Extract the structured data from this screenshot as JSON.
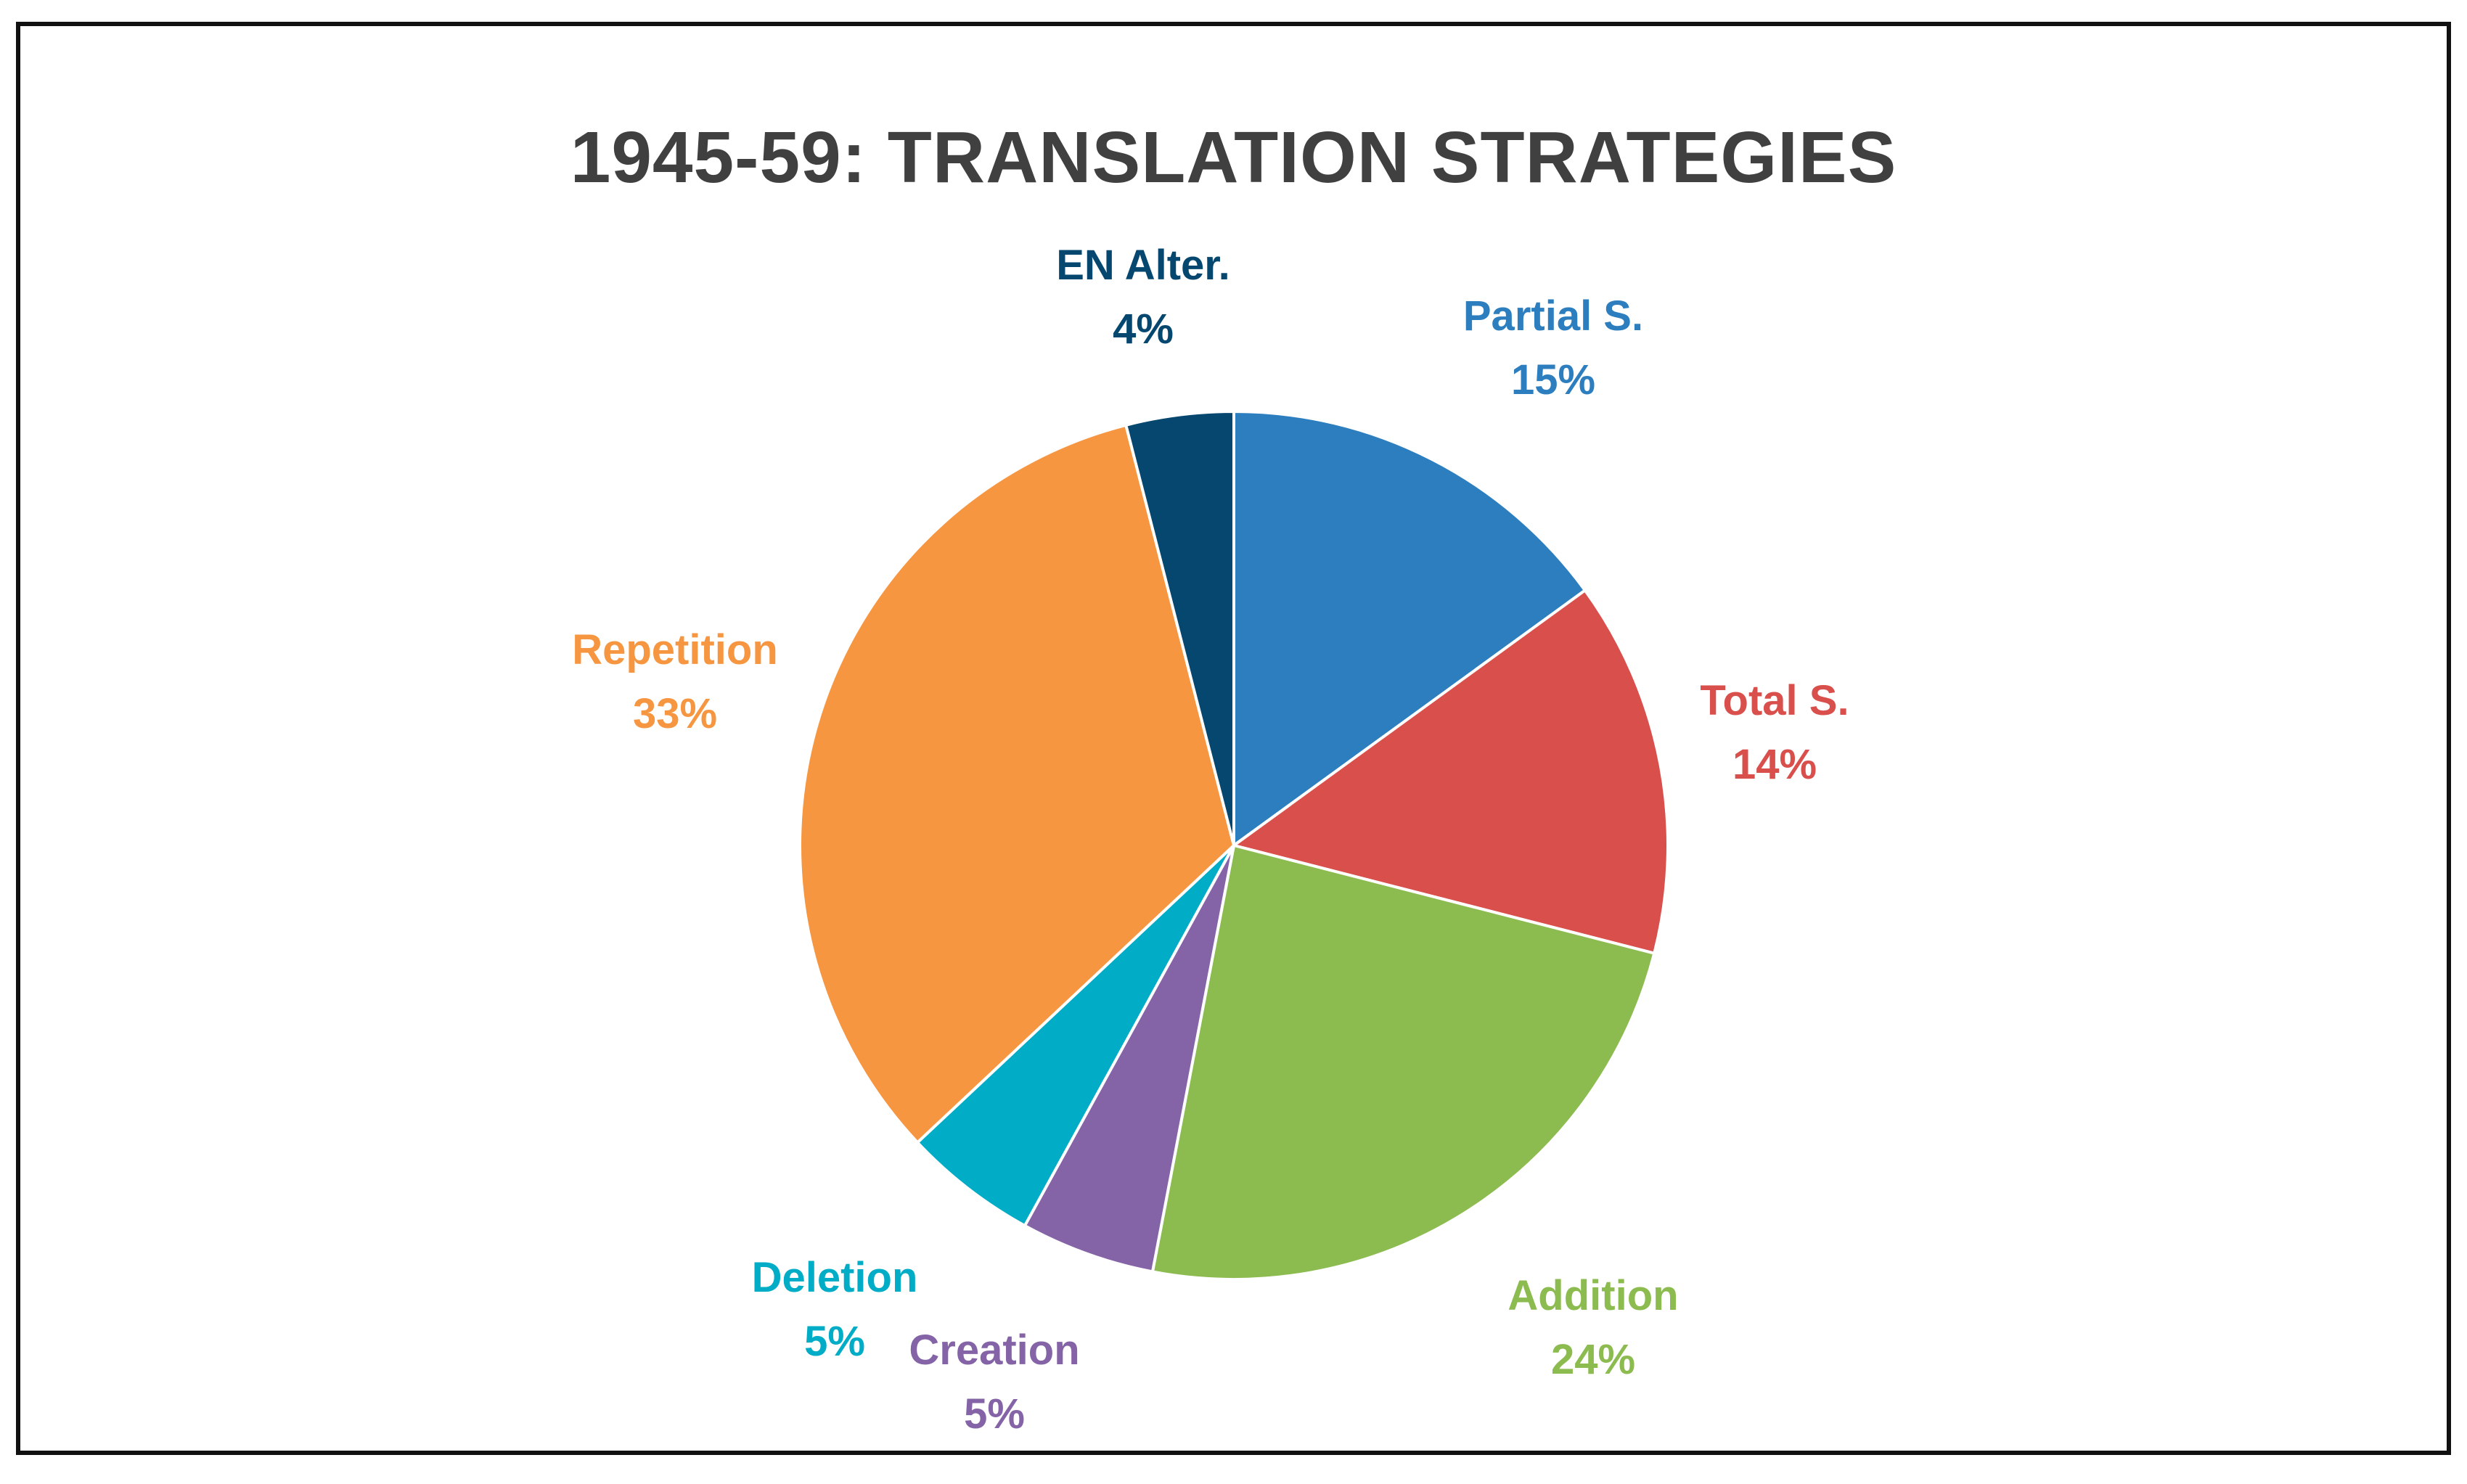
{
  "chart_data": {
    "type": "pie",
    "title": "1945-59: TRANSLATION STRATEGIES",
    "slices": [
      {
        "label": "Partial S.",
        "value": 15,
        "display": "15%",
        "color": "#2C7EBF"
      },
      {
        "label": "Total S.",
        "value": 14,
        "display": "14%",
        "color": "#D94F4B"
      },
      {
        "label": "Addition",
        "value": 24,
        "display": "24%",
        "color": "#8CBB4F"
      },
      {
        "label": "Creation",
        "value": 5,
        "display": "5%",
        "color": "#8563A7"
      },
      {
        "label": "Deletion",
        "value": 5,
        "display": "5%",
        "color": "#00ACC6"
      },
      {
        "label": "Repetition",
        "value": 33,
        "display": "33%",
        "color": "#F79640"
      },
      {
        "label": "EN Alter.",
        "value": 4,
        "display": "4%",
        "color": "#06476F"
      }
    ],
    "start_angle": "12 o'clock",
    "direction": "clockwise",
    "legend": "none",
    "data_labels": "outside, category name and percentage"
  }
}
